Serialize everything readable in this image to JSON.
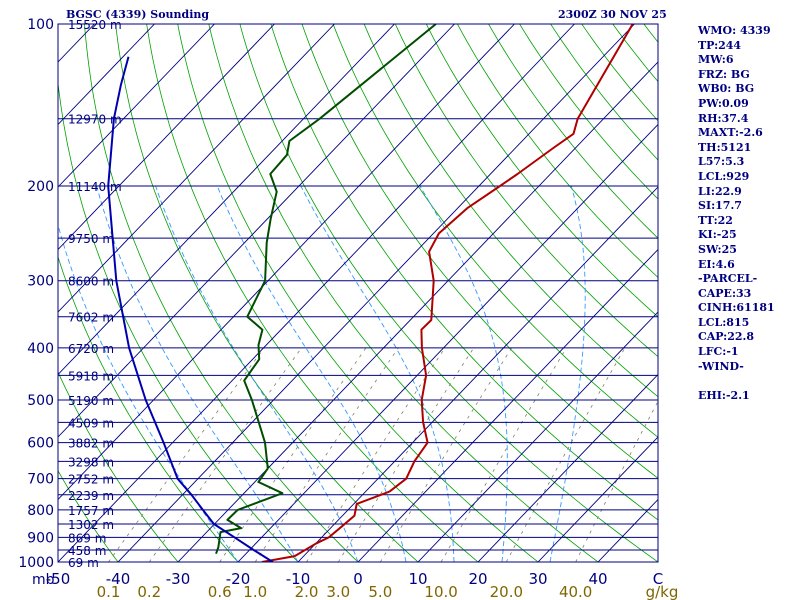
{
  "header": {
    "left_title": "BGSC (4339) Sounding",
    "right_title": "2300Z 30 NOV 25"
  },
  "indices": [
    "WMO: 4339",
    "TP:244",
    "MW:6",
    "FRZ: BG",
    "WB0: BG",
    "PW:0.09",
    "RH:37.4",
    "MAXT:-2.6",
    "TH:5121",
    "L57:5.3",
    "LCL:929",
    "LI:22.9",
    "SI:17.7",
    "TT:22",
    "KI:-25",
    "SW:25",
    "EI:4.6",
    "-PARCEL-",
    "CAPE:33",
    "CINH:61181",
    "LCL:815",
    "CAP:22.8",
    "LFC:-1",
    "-WIND-",
    "",
    "EHI:-2.1"
  ],
  "chart_data": {
    "type": "line",
    "title": "BGSC (4339) Sounding",
    "subtitle": "2300Z 30 NOV 25",
    "xlabel": "",
    "ylabel": "mb",
    "y_scale": "log",
    "pressure_range": [
      1000,
      100
    ],
    "temperature_range": [
      -50,
      50
    ],
    "pressure_ticks": [
      100,
      200,
      300,
      400,
      500,
      600,
      700,
      800,
      900,
      1000
    ],
    "pressure_tick_labels": [
      "100",
      "200",
      "300",
      "400",
      "500",
      "600",
      "700",
      "800",
      "900",
      "1000"
    ],
    "y_unit_label": "mb",
    "temperature_ticks": [
      -50,
      -40,
      -30,
      -20,
      -10,
      0,
      10,
      20,
      30,
      40,
      50
    ],
    "temperature_tick_labels": [
      "-50",
      "-40",
      "-30",
      "-20",
      "-10",
      "0",
      "10",
      "20",
      "30",
      "40",
      "C"
    ],
    "mixing_ratio_labels": [
      "0.1",
      "0.2",
      "0.6",
      "1.0",
      "2.0",
      "3.0",
      "5.0",
      "10.0",
      "20.0",
      "40.0",
      "g/kg"
    ],
    "mixing_ratio_values": [
      0.1,
      0.2,
      0.6,
      1.0,
      2.0,
      3.0,
      5.0,
      10.0,
      20.0,
      40.0
    ],
    "height_levels": [
      {
        "p": 100,
        "label": "15520 m"
      },
      {
        "p": 150,
        "label": "12970 m"
      },
      {
        "p": 200,
        "label": "11140 m"
      },
      {
        "p": 250,
        "label": "9750 m"
      },
      {
        "p": 300,
        "label": "8600 m"
      },
      {
        "p": 350,
        "label": "7602 m"
      },
      {
        "p": 400,
        "label": "6720 m"
      },
      {
        "p": 450,
        "label": "5918 m"
      },
      {
        "p": 500,
        "label": "5190 m"
      },
      {
        "p": 550,
        "label": "4509 m"
      },
      {
        "p": 600,
        "label": "3882 m"
      },
      {
        "p": 650,
        "label": "3298 m"
      },
      {
        "p": 700,
        "label": "2752 m"
      },
      {
        "p": 750,
        "label": "2239 m"
      },
      {
        "p": 800,
        "label": "1757 m"
      },
      {
        "p": 850,
        "label": "1302 m"
      },
      {
        "p": 900,
        "label": "869 m"
      },
      {
        "p": 950,
        "label": "458 m"
      },
      {
        "p": 1000,
        "label": "69 m"
      }
    ],
    "series": [
      {
        "name": "",
        "color": "#b00000",
        "points": [
          {
            "p": 1000,
            "t": -16.0
          },
          {
            "p": 975,
            "t": -11.5
          },
          {
            "p": 925,
            "t": -10.0
          },
          {
            "p": 900,
            "t": -8.8
          },
          {
            "p": 860,
            "t": -8.4
          },
          {
            "p": 820,
            "t": -8.0
          },
          {
            "p": 780,
            "t": -9.5
          },
          {
            "p": 740,
            "t": -6.0
          },
          {
            "p": 700,
            "t": -5.3
          },
          {
            "p": 650,
            "t": -6.7
          },
          {
            "p": 600,
            "t": -7.5
          },
          {
            "p": 550,
            "t": -11.5
          },
          {
            "p": 500,
            "t": -15.3
          },
          {
            "p": 450,
            "t": -18.5
          },
          {
            "p": 400,
            "t": -23.6
          },
          {
            "p": 370,
            "t": -26.6
          },
          {
            "p": 355,
            "t": -26.5
          },
          {
            "p": 300,
            "t": -32.4
          },
          {
            "p": 265,
            "t": -37.8
          },
          {
            "p": 245,
            "t": -39.1
          },
          {
            "p": 220,
            "t": -38.4
          },
          {
            "p": 200,
            "t": -36.5
          },
          {
            "p": 190,
            "t": -35.5
          },
          {
            "p": 170,
            "t": -33.7
          },
          {
            "p": 160,
            "t": -32.6
          },
          {
            "p": 150,
            "t": -34.3
          },
          {
            "p": 100,
            "t": -40.3
          }
        ]
      },
      {
        "name": "",
        "color": "#004d00",
        "points": [
          {
            "p": 965,
            "t": -25.0
          },
          {
            "p": 940,
            "t": -25.6
          },
          {
            "p": 880,
            "t": -27.7
          },
          {
            "p": 865,
            "t": -24.9
          },
          {
            "p": 835,
            "t": -28.5
          },
          {
            "p": 800,
            "t": -28.4
          },
          {
            "p": 745,
            "t": -23.6
          },
          {
            "p": 710,
            "t": -29.4
          },
          {
            "p": 670,
            "t": -30.0
          },
          {
            "p": 600,
            "t": -34.6
          },
          {
            "p": 500,
            "t": -43.6
          },
          {
            "p": 460,
            "t": -48.0
          },
          {
            "p": 420,
            "t": -48.9
          },
          {
            "p": 395,
            "t": -51.3
          },
          {
            "p": 370,
            "t": -53.1
          },
          {
            "p": 350,
            "t": -57.7
          },
          {
            "p": 300,
            "t": -60.5
          },
          {
            "p": 255,
            "t": -66.3
          },
          {
            "p": 230,
            "t": -69.5
          },
          {
            "p": 205,
            "t": -72.8
          },
          {
            "p": 190,
            "t": -76.7
          },
          {
            "p": 175,
            "t": -77.0
          },
          {
            "p": 165,
            "t": -78.8
          },
          {
            "p": 150,
            "t": -77.3
          },
          {
            "p": 100,
            "t": -73.1
          }
        ]
      },
      {
        "name": "",
        "color": "#0000b0",
        "points": [
          {
            "p": 1000,
            "t": -14.2
          },
          {
            "p": 950,
            "t": -19.3
          },
          {
            "p": 900,
            "t": -24.5
          },
          {
            "p": 850,
            "t": -30.1
          },
          {
            "p": 800,
            "t": -34.2
          },
          {
            "p": 750,
            "t": -38.5
          },
          {
            "p": 700,
            "t": -43.4
          },
          {
            "p": 600,
            "t": -51.5
          },
          {
            "p": 500,
            "t": -61.3
          },
          {
            "p": 400,
            "t": -72.4
          },
          {
            "p": 300,
            "t": -85.3
          },
          {
            "p": 200,
            "t": -101.8
          },
          {
            "p": 150,
            "t": -111.6
          },
          {
            "p": 130,
            "t": -115.8
          },
          {
            "p": 115,
            "t": -119.1
          }
        ]
      }
    ],
    "grid": true,
    "colors": {
      "isobar": "#000080",
      "isotherm": "#000080",
      "dry_adiabat": "#00a000",
      "moist_adiabat": "#3399ff",
      "mixing_ratio": "#808060",
      "mixing_ratio_label": "#806600",
      "frame": "#000080"
    }
  }
}
